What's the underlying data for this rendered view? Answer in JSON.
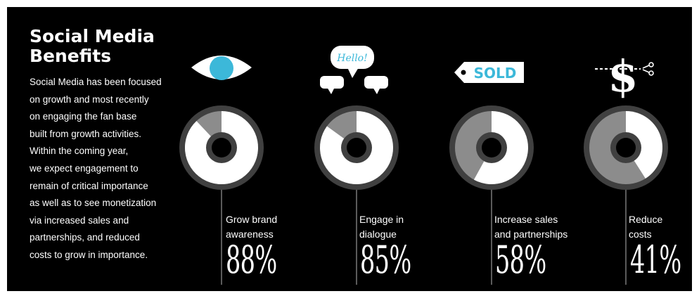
{
  "heading": {
    "lines": [
      "Social Media",
      "Benefits"
    ]
  },
  "intro": {
    "lines": [
      "Social Media has been focused",
      "on growth and most recently",
      "on engaging the fan base",
      "built from growth activities.",
      "Within the coming year,",
      "we expect engagement to",
      "remain of critical importance",
      "as well as to see monetization",
      "via increased sales and",
      "partnerships, and reduced",
      "costs to grow in importance."
    ]
  },
  "icons": {
    "speech": "Hello!",
    "tag": "SOLD",
    "dollar": "$"
  },
  "colors": {
    "background": "#000000",
    "ring": "#404040",
    "fill": "#ffffff",
    "remainder": "#8c8c8c",
    "accent": "#3cb8d9"
  },
  "chart_data": {
    "type": "pie",
    "categories": [
      "Grow brand awareness",
      "Engage in dialogue",
      "Increase sales and partnerships",
      "Reduce costs"
    ],
    "values": [
      88,
      85,
      58,
      41
    ],
    "unit": "%",
    "items": [
      {
        "label_lines": [
          "Grow brand",
          "awareness"
        ],
        "value": 88,
        "display": "88%"
      },
      {
        "label_lines": [
          "Engage in",
          "dialogue"
        ],
        "value": 85,
        "display": "85%"
      },
      {
        "label_lines": [
          "Increase sales",
          "and partnerships"
        ],
        "value": 58,
        "display": "58%"
      },
      {
        "label_lines": [
          "Reduce",
          "costs"
        ],
        "value": 41,
        "display": "41%"
      }
    ]
  }
}
